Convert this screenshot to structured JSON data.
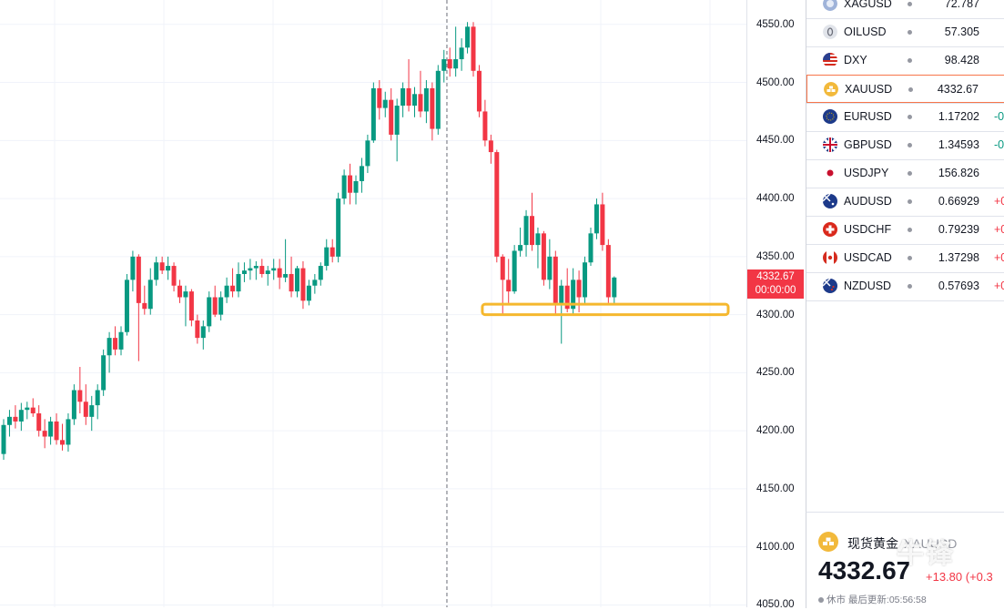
{
  "chart_data": {
    "type": "candlestick",
    "symbol": "XAUUSD",
    "y_ticks": [
      4550,
      4500,
      4450,
      4400,
      4350,
      4300,
      4250,
      4200,
      4150,
      4100,
      4050
    ],
    "y_tick_labels": [
      "4550.00",
      "4500.00",
      "4450.00",
      "4400.00",
      "4350.00",
      "4300.00",
      "4250.00",
      "4200.00",
      "4150.00",
      "4100.00",
      "4050.00"
    ],
    "ylim": [
      4048,
      4571
    ],
    "grid": true,
    "current_price_label": "4332.67",
    "countdown_label": "00:00:00",
    "support_zone": [
      4300,
      4309
    ],
    "candles": [
      [
        4180,
        4210,
        4175,
        4205
      ],
      [
        4205,
        4218,
        4195,
        4212
      ],
      [
        4212,
        4222,
        4202,
        4208
      ],
      [
        4208,
        4224,
        4200,
        4218
      ],
      [
        4218,
        4225,
        4210,
        4220
      ],
      [
        4220,
        4228,
        4212,
        4215
      ],
      [
        4215,
        4222,
        4195,
        4200
      ],
      [
        4200,
        4210,
        4185,
        4195
      ],
      [
        4195,
        4212,
        4188,
        4208
      ],
      [
        4208,
        4215,
        4188,
        4192
      ],
      [
        4192,
        4206,
        4183,
        4188
      ],
      [
        4188,
        4215,
        4182,
        4210
      ],
      [
        4210,
        4240,
        4205,
        4235
      ],
      [
        4235,
        4255,
        4215,
        4225
      ],
      [
        4225,
        4240,
        4205,
        4212
      ],
      [
        4212,
        4230,
        4200,
        4222
      ],
      [
        4222,
        4240,
        4210,
        4235
      ],
      [
        4235,
        4270,
        4230,
        4265
      ],
      [
        4265,
        4285,
        4250,
        4280
      ],
      [
        4280,
        4290,
        4265,
        4270
      ],
      [
        4270,
        4290,
        4265,
        4285
      ],
      [
        4285,
        4335,
        4282,
        4330
      ],
      [
        4330,
        4355,
        4320,
        4350
      ],
      [
        4350,
        4352,
        4260,
        4310
      ],
      [
        4310,
        4325,
        4300,
        4305
      ],
      [
        4305,
        4340,
        4300,
        4330
      ],
      [
        4330,
        4350,
        4325,
        4345
      ],
      [
        4345,
        4350,
        4335,
        4338
      ],
      [
        4338,
        4350,
        4330,
        4342
      ],
      [
        4342,
        4345,
        4320,
        4325
      ],
      [
        4325,
        4330,
        4310,
        4315
      ],
      [
        4315,
        4325,
        4290,
        4320
      ],
      [
        4320,
        4322,
        4290,
        4295
      ],
      [
        4295,
        4300,
        4275,
        4280
      ],
      [
        4280,
        4295,
        4270,
        4290
      ],
      [
        4290,
        4320,
        4285,
        4315
      ],
      [
        4315,
        4325,
        4298,
        4300
      ],
      [
        4300,
        4320,
        4295,
        4315
      ],
      [
        4315,
        4332,
        4310,
        4325
      ],
      [
        4325,
        4340,
        4315,
        4320
      ],
      [
        4320,
        4345,
        4315,
        4335
      ],
      [
        4335,
        4345,
        4328,
        4338
      ],
      [
        4338,
        4348,
        4330,
        4340
      ],
      [
        4340,
        4346,
        4330,
        4342
      ],
      [
        4342,
        4348,
        4332,
        4335
      ],
      [
        4335,
        4342,
        4325,
        4338
      ],
      [
        4338,
        4348,
        4330,
        4340
      ],
      [
        4340,
        4348,
        4322,
        4332
      ],
      [
        4332,
        4365,
        4328,
        4335
      ],
      [
        4335,
        4350,
        4315,
        4320
      ],
      [
        4320,
        4342,
        4315,
        4340
      ],
      [
        4340,
        4346,
        4305,
        4312
      ],
      [
        4312,
        4330,
        4308,
        4325
      ],
      [
        4325,
        4335,
        4318,
        4330
      ],
      [
        4330,
        4345,
        4325,
        4342
      ],
      [
        4342,
        4365,
        4338,
        4358
      ],
      [
        4358,
        4365,
        4345,
        4350
      ],
      [
        4350,
        4405,
        4345,
        4400
      ],
      [
        4400,
        4425,
        4395,
        4420
      ],
      [
        4420,
        4430,
        4395,
        4405
      ],
      [
        4405,
        4420,
        4395,
        4415
      ],
      [
        4415,
        4435,
        4405,
        4428
      ],
      [
        4428,
        4455,
        4422,
        4450
      ],
      [
        4450,
        4500,
        4448,
        4495
      ],
      [
        4495,
        4502,
        4468,
        4478
      ],
      [
        4478,
        4492,
        4470,
        4485
      ],
      [
        4485,
        4495,
        4450,
        4455
      ],
      [
        4455,
        4486,
        4432,
        4480
      ],
      [
        4480,
        4500,
        4470,
        4495
      ],
      [
        4495,
        4520,
        4475,
        4480
      ],
      [
        4480,
        4496,
        4470,
        4490
      ],
      [
        4490,
        4510,
        4470,
        4475
      ],
      [
        4475,
        4502,
        4465,
        4495
      ],
      [
        4495,
        4500,
        4450,
        4460
      ],
      [
        4460,
        4515,
        4455,
        4510
      ],
      [
        4510,
        4528,
        4500,
        4520
      ],
      [
        4520,
        4530,
        4505,
        4512
      ],
      [
        4512,
        4548,
        4505,
        4520
      ],
      [
        4520,
        4538,
        4510,
        4530
      ],
      [
        4530,
        4552,
        4525,
        4548
      ],
      [
        4548,
        4552,
        4505,
        4510
      ],
      [
        4510,
        4515,
        4470,
        4475
      ],
      [
        4475,
        4485,
        4445,
        4450
      ],
      [
        4450,
        4455,
        4430,
        4440
      ],
      [
        4440,
        4442,
        4345,
        4350
      ],
      [
        4350,
        4352,
        4300,
        4330
      ],
      [
        4330,
        4348,
        4310,
        4320
      ],
      [
        4320,
        4360,
        4318,
        4355
      ],
      [
        4355,
        4375,
        4350,
        4360
      ],
      [
        4360,
        4390,
        4350,
        4385
      ],
      [
        4385,
        4405,
        4355,
        4360
      ],
      [
        4360,
        4375,
        4340,
        4370
      ],
      [
        4370,
        4372,
        4325,
        4330
      ],
      [
        4330,
        4365,
        4322,
        4350
      ],
      [
        4350,
        4355,
        4300,
        4310
      ],
      [
        4310,
        4330,
        4275,
        4325
      ],
      [
        4325,
        4340,
        4302,
        4305
      ],
      [
        4305,
        4340,
        4300,
        4330
      ],
      [
        4330,
        4338,
        4302,
        4315
      ],
      [
        4315,
        4350,
        4310,
        4345
      ],
      [
        4345,
        4375,
        4342,
        4370
      ],
      [
        4370,
        4400,
        4365,
        4395
      ],
      [
        4395,
        4405,
        4355,
        4360
      ],
      [
        4360,
        4365,
        4310,
        4315
      ],
      [
        4315,
        4333,
        4308,
        4332
      ]
    ]
  },
  "watchlist": [
    {
      "symbol": "XAGUSD",
      "last": "72.787",
      "change": "",
      "dir": "none",
      "flag": "silver"
    },
    {
      "symbol": "OILUSD",
      "last": "57.305",
      "change": "",
      "dir": "none",
      "flag": "oil"
    },
    {
      "symbol": "DXY",
      "last": "98.428",
      "change": "",
      "dir": "none",
      "flag": "us"
    },
    {
      "symbol": "XAUUSD",
      "last": "4332.67",
      "change": "",
      "dir": "none",
      "flag": "gold",
      "selected": true
    },
    {
      "symbol": "EURUSD",
      "last": "1.17202",
      "change": "-0",
      "dir": "up",
      "flag": "eu"
    },
    {
      "symbol": "GBPUSD",
      "last": "1.34593",
      "change": "-0",
      "dir": "up",
      "flag": "gb"
    },
    {
      "symbol": "USDJPY",
      "last": "156.826",
      "change": "",
      "dir": "none",
      "flag": "jp"
    },
    {
      "symbol": "AUDUSD",
      "last": "0.66929",
      "change": "+0",
      "dir": "down",
      "flag": "au"
    },
    {
      "symbol": "USDCHF",
      "last": "0.79239",
      "change": "+0",
      "dir": "down",
      "flag": "ch"
    },
    {
      "symbol": "USDCAD",
      "last": "1.37298",
      "change": "+0",
      "dir": "down",
      "flag": "ca"
    },
    {
      "symbol": "NZDUSD",
      "last": "0.57693",
      "change": "+0",
      "dir": "down",
      "flag": "nz"
    }
  ],
  "details": {
    "name": "现货黄金",
    "symbol_code": "XAUUSD",
    "price": "4332.67",
    "change": "+13.80 (+0.3",
    "status": "休市",
    "last_update_label": "最后更新:",
    "last_update_time": "05:56:58"
  },
  "watermark": "牛锋",
  "colors": {
    "up": "#089981",
    "down": "#f23645",
    "support_zone": "#f5b82e",
    "grid": "#f0f3fa",
    "selected_border": "#f7764a"
  }
}
